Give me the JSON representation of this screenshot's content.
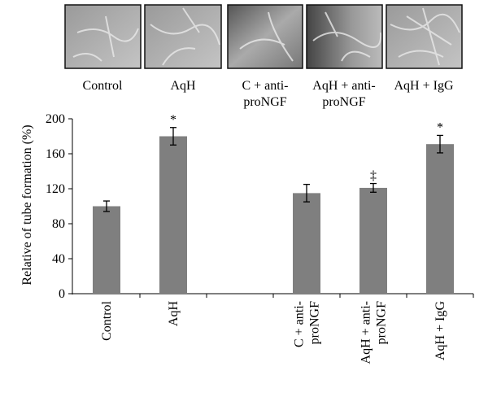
{
  "chart_data": {
    "type": "bar",
    "ylabel": "Relative of tube formation (%)",
    "image_labels": [
      [
        "Control"
      ],
      [
        "AqH"
      ],
      [
        "C + anti-",
        "proNGF"
      ],
      [
        "AqH + anti-",
        "proNGF"
      ],
      [
        "AqH + IgG"
      ]
    ],
    "categories": [
      [
        "Control"
      ],
      [
        "AqH"
      ],
      null,
      [
        "C + anti-",
        "proNGF"
      ],
      [
        "AqH + anti-",
        "proNGF"
      ],
      [
        "AqH + IgG"
      ]
    ],
    "values": [
      100,
      180,
      null,
      115,
      121,
      171
    ],
    "errors": [
      6,
      10,
      null,
      10,
      5,
      10
    ],
    "annotations": [
      null,
      "*",
      null,
      null,
      "‡",
      "*"
    ],
    "color": "#7f7f7f",
    "ylim": [
      0,
      200
    ],
    "yticks": [
      0,
      40,
      80,
      120,
      160,
      200
    ]
  }
}
